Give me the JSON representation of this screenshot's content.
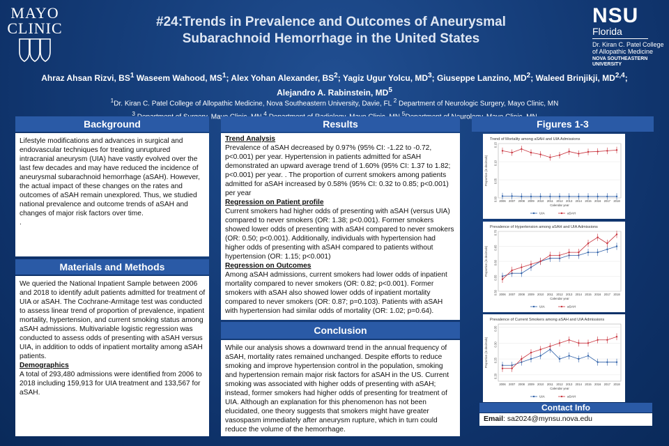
{
  "header": {
    "title_line1": "#24:Trends in Prevalence and Outcomes of Aneurysmal",
    "title_line2": "Subarachnoid Hemorrhage in the United States",
    "mayo_line1": "MAYO",
    "mayo_line2": "CLINIC",
    "nsu_big": "NSU",
    "nsu_florida": "Florida",
    "nsu_college1": "Dr. Kiran C. Patel College",
    "nsu_college2": "of Allopathic Medicine",
    "nsu_univ1": "NOVA SOUTHEASTERN",
    "nsu_univ2": "UNIVERSITY"
  },
  "authors": {
    "a1": "Ahraz Ahsan Rizvi, BS",
    "a1s": "1",
    "a2": " Waseem Wahood, MS",
    "a2s": "1",
    "a3": "; Alex Yohan Alexander, BS",
    "a3s": "2",
    "a4": "; Yagiz Ugur Yolcu, MD",
    "a4s": "3",
    "a5": "; Giuseppe Lanzino, MD",
    "a5s": "2",
    "a6": "; Waleed Brinjikji, MD",
    "a6s": "2,4",
    "a7": ";",
    "a8": "Alejandro A. Rabinstein, MD",
    "a8s": "5"
  },
  "affiliations": {
    "s1": "1",
    "t1": "Dr. Kiran C. Patel College of Allopathic Medicine, Nova Southeastern University, Davie, FL ",
    "s2": "2",
    "t2": " Department of Neurologic Surgery, Mayo Clinic, MN",
    "s3": "3",
    "t3": " Department of Surgery, Mayo Clinic, MN ",
    "s4": "4",
    "t4": " Department of Radiology, Mayo Clinic, MN ",
    "s5": "5",
    "t5": "Department of Neurology, Mayo Clinic, MN"
  },
  "background": {
    "heading": "Background",
    "text": "Lifestyle modifications and advances in surgical and endovascular techniques for treating unruptured intracranial aneurysm (UIA) have vastly evolved over the last few decades and may have reduced the incidence of aneurysmal subarachnoid hemorrhage (aSAH). However, the actual impact of these changes on the rates and outcomes of aSAH remain unexplored. Thus, we studied national prevalence and outcome trends of aSAH and changes of major risk factors over time.",
    "dot": "."
  },
  "methods": {
    "heading": "Materials and Methods",
    "text": "We queried the National Inpatient Sample between 2006 and 2018 to identify adult patients admitted for treatment of UIA or aSAH. The Cochrane-Armitage test was conducted to assess linear trend of proportion of prevalence, inpatient mortality, hypertension, and current smoking status among aSAH admissions. Multivariable logistic regression was conducted to assess odds of presenting with aSAH versus UIA, in addition to odds of inpatient mortality among aSAH patients.",
    "demo_heading": "Demographics",
    "demo_text": "A total of 293,480 admissions were identified from 2006 to 2018 including 159,913 for UIA treatment and 133,567 for aSAH."
  },
  "results": {
    "heading": "Results",
    "trend_heading": "Trend Analysis",
    "trend_text": "Prevalence of aSAH decreased by 0.97% (95% CI: -1.22 to -0.72, p<0.001) per year. Hypertension in patients admitted for aSAH demonstrated an upward average trend of 1.60% (95% CI: 1.37 to 1.82; p<0.001) per year. . The proportion of current smokers among patients admitted for aSAH increased by 0.58% (95% CI: 0.32 to 0.85; p<0.001) per year",
    "reg_prof_heading": "Regression on Patient profile",
    "reg_prof_text": "Current smokers had higher odds of presenting with aSAH (versus UIA) compared to never smokers (OR: 1.38; p<0.001). Former smokers showed lower odds of presenting with aSAH compared to never smokers (OR: 0.50; p<0.001). Additionally, individuals with hypertension  had higher odds of presenting with aSAH compared to patients without hypertension (OR: 1.15; p<0.001)",
    "reg_out_heading": "Regression on Outcomes",
    "reg_out_text": "Among aSAH admissions, current smokers had lower odds of inpatient mortality compared to never smokers (OR: 0.82; p<0.001). Former smokers with aSAH also showed lower odds of inpatient mortality compared to never smokers (OR: 0.87; p=0.103). Patients with aSAH with hypertension had similar odds of mortality (OR: 1.02; p=0.64)."
  },
  "conclusion": {
    "heading": "Conclusion",
    "text": "While our analysis shows a downward trend in the annual frequency of aSAH, mortality rates remained unchanged. Despite efforts to reduce smoking and improve hypertension control in the population, smoking and hypertension remain major risk factors for aSAH in the US. Current smoking was associated with higher odds of presenting with aSAH; instead, former smokers had higher odds of presenting for treatment of UIA. Although an explanation for this phenomenon has not been elucidated, one theory suggests that smokers might have greater vasospasm immediately after aneurysm rupture, which in turn could reduce the volume of the hemorrhage."
  },
  "figures": {
    "heading": "Figures 1-3"
  },
  "contact": {
    "heading": "Contact Info",
    "email_label": "Email",
    "email_value": ": sa2024@mynsu.nova.edu"
  },
  "colors": {
    "uia": "#2c5fa8",
    "asah": "#c8323c",
    "accent": "#2a5aa6"
  },
  "chart_data": [
    {
      "type": "line",
      "title": "Trend of Mortality among aSAH and UIA Admissions",
      "xlabel": "Calendar year",
      "ylabel": "Proportion (in decimals)",
      "categories": [
        "2006",
        "2007",
        "2008",
        "2009",
        "2010",
        "2011",
        "2012",
        "2013",
        "2014",
        "2015",
        "2016",
        "2017",
        "2018"
      ],
      "yticks": [
        "0.00",
        "0.05",
        "0.10",
        "0.15"
      ],
      "ylim": [
        0,
        0.15
      ],
      "series": [
        {
          "name": "UIA",
          "values": [
            0.005,
            0.005,
            0.004,
            0.004,
            0.004,
            0.004,
            0.004,
            0.004,
            0.004,
            0.004,
            0.004,
            0.004,
            0.004
          ]
        },
        {
          "name": "aSAH",
          "values": [
            0.13,
            0.125,
            0.135,
            0.125,
            0.12,
            0.112,
            0.118,
            0.128,
            0.122,
            0.127,
            0.128,
            0.13,
            0.132
          ]
        }
      ]
    },
    {
      "type": "line",
      "title": "Prevalence of Hypertension among aSAH and UIA Admissions",
      "xlabel": "Calendar year",
      "ylabel": "Proportion (in decimals)",
      "categories": [
        "2006",
        "2007",
        "2008",
        "2009",
        "2010",
        "2011",
        "2012",
        "2013",
        "2014",
        "2015",
        "2016",
        "2017",
        "2018"
      ],
      "yticks": [
        "0.50",
        "0.55",
        "0.60",
        "0.65",
        "0.70"
      ],
      "ylim": [
        0.5,
        0.7
      ],
      "series": [
        {
          "name": "UIA",
          "values": [
            0.55,
            0.56,
            0.56,
            0.58,
            0.6,
            0.61,
            0.61,
            0.62,
            0.62,
            0.63,
            0.63,
            0.64,
            0.65
          ]
        },
        {
          "name": "aSAH",
          "values": [
            0.54,
            0.57,
            0.58,
            0.59,
            0.6,
            0.62,
            0.62,
            0.63,
            0.63,
            0.66,
            0.68,
            0.66,
            0.69
          ]
        }
      ]
    },
    {
      "type": "line",
      "title": "Prevalence of Current Smokers among aSAH and UIA Admissions",
      "xlabel": "Calendar year",
      "ylabel": "Proportion (in decimals)",
      "categories": [
        "2006",
        "2007",
        "2008",
        "2009",
        "2010",
        "2011",
        "2012",
        "2013",
        "2014",
        "2015",
        "2016",
        "2017",
        "2018"
      ],
      "yticks": [
        "0.20",
        "0.25",
        "0.30",
        "0.35"
      ],
      "ylim": [
        0.18,
        0.36
      ],
      "series": [
        {
          "name": "UIA",
          "values": [
            0.23,
            0.23,
            0.24,
            0.25,
            0.26,
            0.28,
            0.25,
            0.26,
            0.25,
            0.26,
            0.24,
            0.24,
            0.24
          ]
        },
        {
          "name": "aSAH",
          "values": [
            0.22,
            0.22,
            0.25,
            0.27,
            0.28,
            0.29,
            0.3,
            0.31,
            0.3,
            0.3,
            0.31,
            0.31,
            0.32
          ]
        }
      ]
    }
  ]
}
